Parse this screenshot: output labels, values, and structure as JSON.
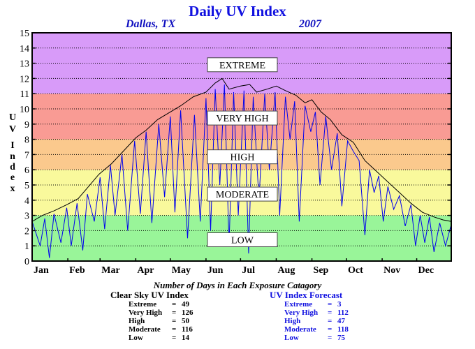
{
  "header": {
    "title": "Daily UV Index",
    "location": "Dallas, TX",
    "year": "2007"
  },
  "chart_data": {
    "type": "line",
    "ylabel": "UV Index",
    "ylim": [
      0,
      15
    ],
    "yticks": [
      "0",
      "1",
      "2",
      "3",
      "4",
      "5",
      "6",
      "7",
      "8",
      "9",
      "10",
      "11",
      "12",
      "13",
      "14",
      "15"
    ],
    "months": [
      "Jan",
      "Feb",
      "Mar",
      "Apr",
      "May",
      "Jun",
      "Jul",
      "Aug",
      "Sep",
      "Oct",
      "Nov",
      "Dec"
    ],
    "xlim": [
      1,
      365
    ],
    "grid": true,
    "bands": [
      {
        "name": "LOW",
        "from": 0,
        "to": 3,
        "color": "#99f599"
      },
      {
        "name": "MODERATE",
        "from": 3,
        "to": 6,
        "color": "#f9f99c"
      },
      {
        "name": "HIGH",
        "from": 6,
        "to": 8,
        "color": "#fbc98d"
      },
      {
        "name": "VERY HIGH",
        "from": 8,
        "to": 11,
        "color": "#f99b94"
      },
      {
        "name": "EXTREME",
        "from": 11,
        "to": 15,
        "color": "#d89bf9"
      }
    ],
    "band_labels": [
      {
        "text": "EXTREME",
        "y": 12.9
      },
      {
        "text": "VERY HIGH",
        "y": 9.4
      },
      {
        "text": "HIGH",
        "y": 6.85
      },
      {
        "text": "MODERATE",
        "y": 4.4
      },
      {
        "text": "LOW",
        "y": 1.4
      }
    ],
    "series": [
      {
        "name": "Clear Sky UV Index",
        "color": "#000000",
        "points": [
          [
            1,
            2.6
          ],
          [
            10,
            3.0
          ],
          [
            20,
            3.3
          ],
          [
            31,
            3.7
          ],
          [
            41,
            4.1
          ],
          [
            50,
            4.9
          ],
          [
            59,
            5.7
          ],
          [
            70,
            6.4
          ],
          [
            80,
            7.2
          ],
          [
            91,
            8.1
          ],
          [
            100,
            8.6
          ],
          [
            110,
            9.3
          ],
          [
            121,
            9.8
          ],
          [
            130,
            10.2
          ],
          [
            141,
            10.8
          ],
          [
            152,
            11.1
          ],
          [
            160,
            11.7
          ],
          [
            166,
            12.0
          ],
          [
            172,
            11.3
          ],
          [
            182,
            11.5
          ],
          [
            190,
            11.6
          ],
          [
            196,
            11.1
          ],
          [
            205,
            11.3
          ],
          [
            213,
            11.5
          ],
          [
            221,
            11.2
          ],
          [
            230,
            10.9
          ],
          [
            238,
            10.4
          ],
          [
            244,
            10.6
          ],
          [
            252,
            9.8
          ],
          [
            260,
            9.3
          ],
          [
            270,
            8.3
          ],
          [
            280,
            7.8
          ],
          [
            290,
            6.6
          ],
          [
            300,
            5.9
          ],
          [
            310,
            5.2
          ],
          [
            320,
            4.5
          ],
          [
            330,
            3.8
          ],
          [
            340,
            3.2
          ],
          [
            350,
            2.9
          ],
          [
            358,
            2.7
          ],
          [
            365,
            2.6
          ]
        ]
      },
      {
        "name": "UV Index Forecast",
        "color": "#0000ee",
        "points": [
          [
            1,
            2.6
          ],
          [
            8,
            1.0
          ],
          [
            12,
            2.8
          ],
          [
            16,
            0.2
          ],
          [
            20,
            3.1
          ],
          [
            26,
            1.2
          ],
          [
            31,
            3.5
          ],
          [
            35,
            1.0
          ],
          [
            40,
            3.8
          ],
          [
            45,
            0.7
          ],
          [
            49,
            4.4
          ],
          [
            55,
            2.6
          ],
          [
            60,
            5.5
          ],
          [
            64,
            2.1
          ],
          [
            69,
            6.3
          ],
          [
            73,
            3.0
          ],
          [
            79,
            7.0
          ],
          [
            84,
            2.0
          ],
          [
            90,
            7.9
          ],
          [
            95,
            3.1
          ],
          [
            100,
            8.5
          ],
          [
            105,
            2.5
          ],
          [
            111,
            9.0
          ],
          [
            116,
            4.2
          ],
          [
            121,
            9.5
          ],
          [
            125,
            3.2
          ],
          [
            130,
            9.9
          ],
          [
            136,
            1.5
          ],
          [
            142,
            9.6
          ],
          [
            147,
            2.6
          ],
          [
            152,
            10.7
          ],
          [
            156,
            2.0
          ],
          [
            160,
            11.3
          ],
          [
            164,
            5.0
          ],
          [
            168,
            11.6
          ],
          [
            172,
            1.0
          ],
          [
            176,
            11.1
          ],
          [
            180,
            3.0
          ],
          [
            185,
            11.2
          ],
          [
            189,
            0.5
          ],
          [
            193,
            10.8
          ],
          [
            198,
            4.0
          ],
          [
            203,
            11.0
          ],
          [
            207,
            6.0
          ],
          [
            212,
            11.1
          ],
          [
            216,
            3.0
          ],
          [
            221,
            10.8
          ],
          [
            225,
            8.0
          ],
          [
            229,
            10.5
          ],
          [
            233,
            2.6
          ],
          [
            238,
            10.2
          ],
          [
            243,
            8.5
          ],
          [
            247,
            9.8
          ],
          [
            251,
            5.0
          ],
          [
            256,
            9.5
          ],
          [
            261,
            6.0
          ],
          [
            266,
            8.4
          ],
          [
            270,
            3.6
          ],
          [
            275,
            7.9
          ],
          [
            280,
            7.2
          ],
          [
            285,
            6.6
          ],
          [
            290,
            1.7
          ],
          [
            294,
            6.0
          ],
          [
            298,
            4.5
          ],
          [
            302,
            5.6
          ],
          [
            306,
            2.6
          ],
          [
            310,
            4.9
          ],
          [
            315,
            3.4
          ],
          [
            320,
            4.3
          ],
          [
            325,
            2.3
          ],
          [
            330,
            3.7
          ],
          [
            334,
            1.0
          ],
          [
            338,
            3.0
          ],
          [
            342,
            1.2
          ],
          [
            346,
            2.9
          ],
          [
            350,
            0.6
          ],
          [
            355,
            2.5
          ],
          [
            360,
            1.0
          ],
          [
            365,
            2.4
          ]
        ]
      }
    ]
  },
  "stats": {
    "title": "Number of Days in Each Exposure Catagory",
    "clear_sky": {
      "heading": "Clear Sky UV Index",
      "rows": [
        {
          "name": "Extreme",
          "value": "49"
        },
        {
          "name": "Very High",
          "value": "126"
        },
        {
          "name": "High",
          "value": "50"
        },
        {
          "name": "Moderate",
          "value": "116"
        },
        {
          "name": "Low",
          "value": "14"
        }
      ]
    },
    "forecast": {
      "heading": "UV Index Forecast",
      "rows": [
        {
          "name": "Extreme",
          "value": "3"
        },
        {
          "name": "Very High",
          "value": "112"
        },
        {
          "name": "High",
          "value": "47"
        },
        {
          "name": "Moderate",
          "value": "118"
        },
        {
          "name": "Low",
          "value": "75"
        }
      ]
    }
  }
}
